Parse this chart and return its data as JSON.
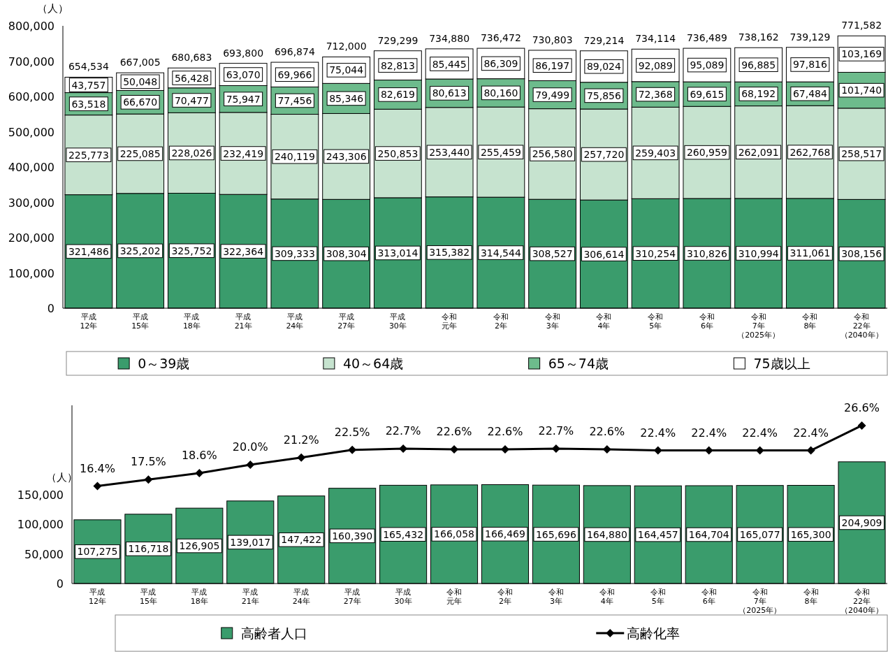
{
  "chart_data": [
    {
      "type": "bar",
      "stacked": true,
      "ylabel": "（人）",
      "legend": "bottom",
      "grid": false,
      "categories": [
        "平成12年",
        "平成15年",
        "平成18年",
        "平成21年",
        "平成24年",
        "平成27年",
        "平成30年",
        "令和元年",
        "令和2年",
        "令和3年",
        "令和4年",
        "令和5年",
        "令和6年",
        "令和7年（2025年）",
        "令和8年",
        "令和22年（2040年）"
      ],
      "ylim": [
        0,
        800000
      ],
      "yticks": [
        {
          "value": 0,
          "label": "0"
        },
        {
          "value": 100000,
          "label": "100,000"
        },
        {
          "value": 200000,
          "label": "200,000"
        },
        {
          "value": 300000,
          "label": "300,000"
        },
        {
          "value": 400000,
          "label": "400,000"
        },
        {
          "value": 500000,
          "label": "500,000"
        },
        {
          "value": 600000,
          "label": "600,000"
        },
        {
          "value": 700000,
          "label": "700,000"
        },
        {
          "value": 800000,
          "label": "800,000"
        }
      ],
      "series": [
        {
          "name": "0～39歳",
          "color": "#3a9c6c",
          "values": [
            321486,
            325202,
            325752,
            322364,
            309333,
            308304,
            313014,
            315382,
            314544,
            308527,
            306614,
            310254,
            310826,
            310994,
            311061,
            308156
          ],
          "value_labels": [
            "321,486",
            "325,202",
            "325,752",
            "322,364",
            "309,333",
            "308,304",
            "313,014",
            "315,382",
            "314,544",
            "308,527",
            "306,614",
            "310,254",
            "310,826",
            "310,994",
            "311,061",
            "308,156"
          ]
        },
        {
          "name": "40～64歳",
          "color": "#c6e3cf",
          "values": [
            225773,
            225085,
            228026,
            232419,
            240119,
            243306,
            250853,
            253440,
            255459,
            256580,
            257720,
            259403,
            260959,
            262091,
            262768,
            258517
          ],
          "value_labels": [
            "225,773",
            "225,085",
            "228,026",
            "232,419",
            "240,119",
            "243,306",
            "250,853",
            "253,440",
            "255,459",
            "256,580",
            "257,720",
            "259,403",
            "260,959",
            "262,091",
            "262,768",
            "258,517"
          ]
        },
        {
          "name": "65～74歳",
          "color": "#6dbb8c",
          "values": [
            63518,
            66670,
            70477,
            75947,
            77456,
            85346,
            82619,
            80613,
            80160,
            79499,
            75856,
            72368,
            69615,
            68192,
            67484,
            101740
          ],
          "value_labels": [
            "63,518",
            "66,670",
            "70,477",
            "75,947",
            "77,456",
            "85,346",
            "82,619",
            "80,613",
            "80,160",
            "79,499",
            "75,856",
            "72,368",
            "69,615",
            "68,192",
            "67,484",
            "101,740"
          ]
        },
        {
          "name": "75歳以上",
          "color": "#ffffff",
          "values": [
            43757,
            50048,
            56428,
            63070,
            69966,
            75044,
            82813,
            85445,
            86309,
            86197,
            89024,
            92089,
            95089,
            96885,
            97816,
            103169
          ],
          "value_labels": [
            "43,757",
            "50,048",
            "56,428",
            "63,070",
            "69,966",
            "75,044",
            "82,813",
            "85,445",
            "86,309",
            "86,197",
            "89,024",
            "92,089",
            "95,089",
            "96,885",
            "97,816",
            "103,169"
          ]
        }
      ],
      "totals": [
        "654,534",
        "667,005",
        "680,683",
        "693,800",
        "696,874",
        "712,000",
        "729,299",
        "734,880",
        "736,472",
        "730,803",
        "729,214",
        "734,114",
        "736,489",
        "738,162",
        "739,129",
        "771,582"
      ]
    },
    {
      "type": "bar",
      "ylabel": "（人）",
      "legend": "bottom",
      "grid": false,
      "categories": [
        "平成12年",
        "平成15年",
        "平成18年",
        "平成21年",
        "平成24年",
        "平成27年",
        "平成30年",
        "令和元年",
        "令和2年",
        "令和3年",
        "令和4年",
        "令和5年",
        "令和6年",
        "令和7年（2025年）",
        "令和8年",
        "令和22年（2040年）"
      ],
      "ylim": [
        0,
        300000
      ],
      "yticks": [
        {
          "value": 0,
          "label": "0"
        },
        {
          "value": 50000,
          "label": "50,000"
        },
        {
          "value": 100000,
          "label": "100,000"
        },
        {
          "value": 150000,
          "label": "150,000"
        }
      ],
      "y2lim": [
        0,
        30
      ],
      "series": [
        {
          "name": "高齢者人口",
          "color": "#3a9c6c",
          "values": [
            107275,
            116718,
            126905,
            139017,
            147422,
            160390,
            165432,
            166058,
            166469,
            165696,
            164880,
            164457,
            164704,
            165077,
            165300,
            204909
          ],
          "value_labels": [
            "107,275",
            "116,718",
            "126,905",
            "139,017",
            "147,422",
            "160,390",
            "165,432",
            "166,058",
            "166,469",
            "165,696",
            "164,880",
            "164,457",
            "164,704",
            "165,077",
            "165,300",
            "204,909"
          ]
        },
        {
          "name": "高齢化率",
          "type": "line",
          "axis": "y2",
          "color": "#000000",
          "marker": "diamond",
          "values": [
            16.4,
            17.5,
            18.6,
            20.0,
            21.2,
            22.5,
            22.7,
            22.6,
            22.6,
            22.7,
            22.6,
            22.4,
            22.4,
            22.4,
            22.4,
            26.6
          ],
          "value_labels": [
            "16.4%",
            "17.5%",
            "18.6%",
            "20.0%",
            "21.2%",
            "22.5%",
            "22.7%",
            "22.6%",
            "22.6%",
            "22.7%",
            "22.6%",
            "22.4%",
            "22.4%",
            "22.4%",
            "22.4%",
            "26.6%"
          ]
        }
      ]
    }
  ]
}
